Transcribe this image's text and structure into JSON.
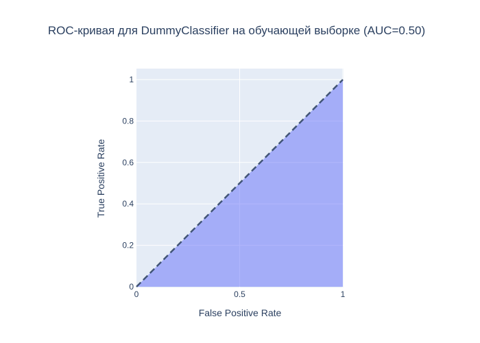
{
  "chart_data": {
    "type": "area",
    "title": "ROC-кривая для DummyClassifier на обучающей выборке (AUC=0.50)",
    "xlabel": "False Positive Rate",
    "ylabel": "True Positive Rate",
    "xlim": [
      0,
      1
    ],
    "ylim": [
      0,
      1
    ],
    "x_ticks": [
      "0",
      "0.5",
      "1"
    ],
    "y_ticks": [
      "0",
      "0.2",
      "0.4",
      "0.6",
      "0.8",
      "1"
    ],
    "grid": true,
    "series": [
      {
        "x": [
          0,
          1
        ],
        "y": [
          0,
          1
        ],
        "fill": "tozeroy",
        "fill_color": "#636efa"
      }
    ],
    "reference_line": {
      "x": [
        0,
        1
      ],
      "y": [
        0,
        1
      ],
      "style": "dash",
      "color": "#2a3f5f"
    },
    "colors": {
      "plot_background": "#e5ecf6",
      "gridline": "#ffffff",
      "text": "#2a3f5f"
    }
  }
}
